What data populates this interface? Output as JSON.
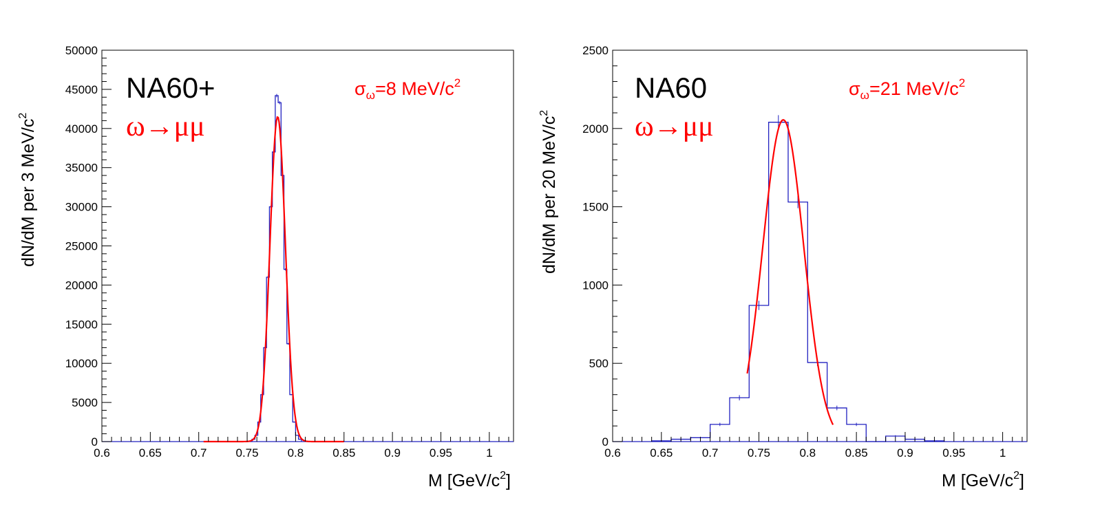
{
  "chart_data": [
    {
      "type": "histogram",
      "panel_label": "NA60+",
      "decay_label": "ω→μμ",
      "sigma_label": {
        "symbol": "σ",
        "sub": "ω",
        "value": "=8 MeV/c",
        "sup": "2"
      },
      "xlabel": {
        "text": "M [GeV/c",
        "sup": "2",
        "close": "]"
      },
      "ylabel": {
        "text": "dN/dM per 3 MeV/c",
        "sup": "2"
      },
      "xlim": [
        0.6,
        1.025
      ],
      "ylim": [
        0,
        50000
      ],
      "xticks": [
        "0.6",
        "0.65",
        "0.7",
        "0.75",
        "0.8",
        "0.85",
        "0.9",
        "0.95",
        "1"
      ],
      "yticks": [
        "0",
        "5000",
        "10000",
        "15000",
        "20000",
        "25000",
        "30000",
        "35000",
        "40000",
        "45000",
        "50000"
      ],
      "series": [
        {
          "kind": "histogram",
          "color": "#2020c0",
          "bin_width": 0.003,
          "x_start": 0.755,
          "values": [
            300,
            800,
            2500,
            6000,
            12000,
            21000,
            30000,
            37000,
            44200,
            43300,
            34000,
            22000,
            12500,
            6000,
            2500,
            800,
            300
          ]
        },
        {
          "kind": "fit",
          "color": "#ff0000",
          "function": "gaussian",
          "amplitude": 41500,
          "mean": 0.7815,
          "sigma": 0.008,
          "x_range": [
            0.705,
            0.85
          ]
        }
      ]
    },
    {
      "type": "histogram",
      "panel_label": "NA60",
      "decay_label": "ω→μμ",
      "sigma_label": {
        "symbol": "σ",
        "sub": "ω",
        "value": "=21 MeV/c",
        "sup": "2"
      },
      "xlabel": {
        "text": "M [GeV/c",
        "sup": "2",
        "close": "]"
      },
      "ylabel": {
        "text": "dN/dM per 20 MeV/c",
        "sup": "2"
      },
      "xlim": [
        0.6,
        1.025
      ],
      "ylim": [
        0,
        2500
      ],
      "xticks": [
        "0.6",
        "0.65",
        "0.7",
        "0.75",
        "0.8",
        "0.85",
        "0.9",
        "0.95",
        "1"
      ],
      "yticks": [
        "0",
        "500",
        "1000",
        "1500",
        "2000",
        "2500"
      ],
      "series": [
        {
          "kind": "histogram",
          "color": "#2020c0",
          "bin_width": 0.02,
          "x_start": 0.64,
          "values": [
            5,
            15,
            25,
            110,
            280,
            870,
            2040,
            1530,
            505,
            215,
            110,
            0,
            35,
            15,
            5
          ]
        },
        {
          "kind": "fit",
          "color": "#ff0000",
          "function": "gaussian",
          "amplitude": 2055,
          "mean": 0.775,
          "sigma": 0.021,
          "x_range": [
            0.738,
            0.826
          ]
        }
      ]
    }
  ]
}
